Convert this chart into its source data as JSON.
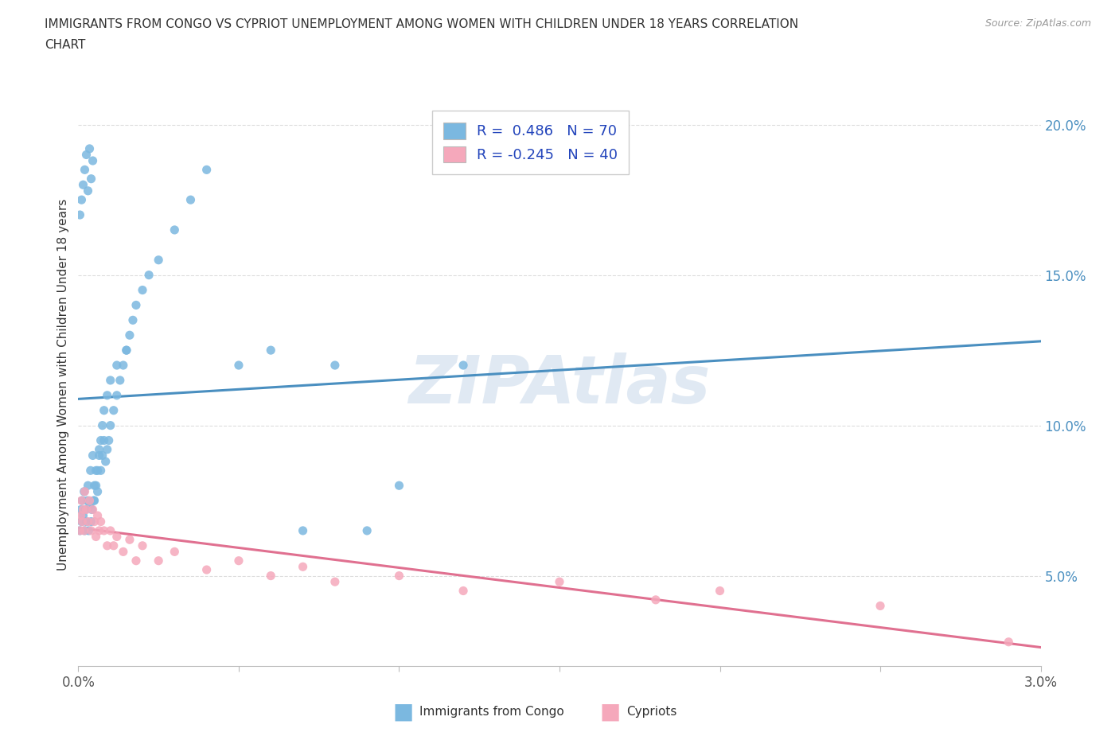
{
  "title_line1": "IMMIGRANTS FROM CONGO VS CYPRIOT UNEMPLOYMENT AMONG WOMEN WITH CHILDREN UNDER 18 YEARS CORRELATION",
  "title_line2": "CHART",
  "source": "Source: ZipAtlas.com",
  "ylabel": "Unemployment Among Women with Children Under 18 years",
  "xlim": [
    0.0,
    0.03
  ],
  "ylim": [
    0.02,
    0.207
  ],
  "yticks_right": [
    0.05,
    0.1,
    0.15,
    0.2
  ],
  "ytick_right_labels": [
    "5.0%",
    "10.0%",
    "15.0%",
    "20.0%"
  ],
  "legend_r1": "R =  0.486",
  "legend_n1": "N = 70",
  "legend_r2": "R = -0.245",
  "legend_n2": "N = 40",
  "color_congo": "#7bb8e0",
  "color_cyprus": "#f5a8bb",
  "color_line_congo": "#4a8fc0",
  "color_line_cyprus": "#e07090",
  "watermark": "ZIPAtlas",
  "watermark_color": "#c8d8ea",
  "background": "#ffffff",
  "congo_x": [
    5e-05,
    8e-05,
    0.0001,
    0.00012,
    0.00015,
    0.00018,
    0.0002,
    0.00022,
    0.00025,
    0.00028,
    0.0003,
    0.00032,
    0.00035,
    0.00038,
    0.0004,
    0.00042,
    0.00045,
    0.00048,
    0.0005,
    0.00055,
    0.0006,
    0.00065,
    0.0007,
    0.00075,
    0.0008,
    0.00085,
    0.0009,
    0.00095,
    0.001,
    0.0011,
    0.0012,
    0.0013,
    0.0014,
    0.0015,
    0.0016,
    0.0017,
    0.0018,
    0.002,
    0.0022,
    0.0025,
    0.003,
    0.0035,
    0.004,
    0.005,
    0.006,
    0.007,
    0.008,
    0.009,
    0.01,
    0.012,
    5e-05,
    0.0001,
    0.00015,
    0.0002,
    0.00025,
    0.0003,
    0.00035,
    0.0004,
    0.00045,
    0.0005,
    0.00055,
    0.0006,
    0.00065,
    0.0007,
    0.00075,
    0.0008,
    0.0009,
    0.001,
    0.0012,
    0.0015
  ],
  "congo_y": [
    0.065,
    0.072,
    0.068,
    0.075,
    0.07,
    0.078,
    0.065,
    0.072,
    0.068,
    0.075,
    0.08,
    0.065,
    0.073,
    0.085,
    0.068,
    0.072,
    0.09,
    0.075,
    0.08,
    0.085,
    0.078,
    0.092,
    0.085,
    0.09,
    0.095,
    0.088,
    0.092,
    0.095,
    0.1,
    0.105,
    0.11,
    0.115,
    0.12,
    0.125,
    0.13,
    0.135,
    0.14,
    0.145,
    0.15,
    0.155,
    0.165,
    0.175,
    0.185,
    0.12,
    0.125,
    0.065,
    0.12,
    0.065,
    0.08,
    0.12,
    0.17,
    0.175,
    0.18,
    0.185,
    0.19,
    0.178,
    0.192,
    0.182,
    0.188,
    0.075,
    0.08,
    0.085,
    0.09,
    0.095,
    0.1,
    0.105,
    0.11,
    0.115,
    0.12,
    0.125
  ],
  "cyprus_x": [
    5e-05,
    8e-05,
    0.0001,
    0.00012,
    0.00015,
    0.00018,
    0.0002,
    0.00025,
    0.0003,
    0.00035,
    0.0004,
    0.00045,
    0.0005,
    0.00055,
    0.0006,
    0.00065,
    0.0007,
    0.0008,
    0.0009,
    0.001,
    0.0011,
    0.0012,
    0.0014,
    0.0016,
    0.0018,
    0.002,
    0.0025,
    0.003,
    0.004,
    0.005,
    0.006,
    0.007,
    0.008,
    0.01,
    0.012,
    0.015,
    0.018,
    0.02,
    0.025,
    0.029
  ],
  "cyprus_y": [
    0.065,
    0.07,
    0.075,
    0.068,
    0.072,
    0.065,
    0.078,
    0.072,
    0.068,
    0.075,
    0.065,
    0.072,
    0.068,
    0.063,
    0.07,
    0.065,
    0.068,
    0.065,
    0.06,
    0.065,
    0.06,
    0.063,
    0.058,
    0.062,
    0.055,
    0.06,
    0.055,
    0.058,
    0.052,
    0.055,
    0.05,
    0.053,
    0.048,
    0.05,
    0.045,
    0.048,
    0.042,
    0.045,
    0.04,
    0.028
  ]
}
